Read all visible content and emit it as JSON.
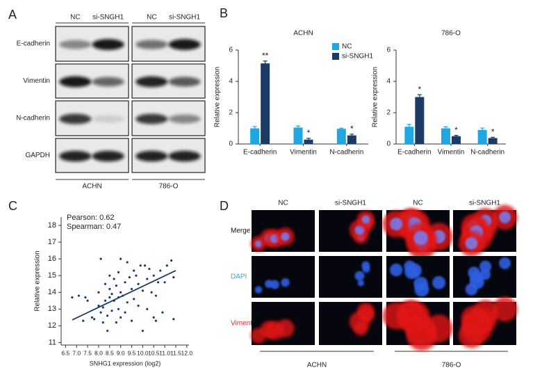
{
  "panel_labels": [
    "A",
    "B",
    "C",
    "D"
  ],
  "western_blot": {
    "groups": [
      {
        "label": "ACHN",
        "lanes": [
          "NC",
          "si-SNGH1"
        ]
      },
      {
        "label": "786-O",
        "lanes": [
          "NC",
          "si-SNGH1"
        ]
      }
    ],
    "rows": [
      "E-cadherin",
      "Vimentin",
      "N-cadherin",
      "GAPDH"
    ]
  },
  "chart_data": [
    {
      "type": "bar",
      "title": "ACHN",
      "y_label": "Relative expression",
      "categories": [
        "E-cadherin",
        "Vimentin",
        "N-cadherin"
      ],
      "series": [
        {
          "name": "NC",
          "color": "#1ea7e1",
          "values": [
            1,
            1.05,
            0.97
          ],
          "errors": [
            0.12,
            0.1,
            0.04
          ]
        },
        {
          "name": "si-SNGH1",
          "color": "#1b3a66",
          "values": [
            5.15,
            0.28,
            0.55
          ],
          "errors": [
            0.15,
            0.08,
            0.08
          ]
        }
      ],
      "annotations": [
        "**",
        "*",
        "*"
      ],
      "ylim": [
        0,
        6
      ],
      "yticks": [
        0,
        2,
        4,
        6
      ],
      "legend": "upper right"
    },
    {
      "type": "bar",
      "title": "786-O",
      "y_label": "Relative expression",
      "categories": [
        "E-cadherin",
        "Vimentin",
        "N-cadherin"
      ],
      "series": [
        {
          "name": "NC",
          "color": "#1ea7e1",
          "values": [
            1.1,
            1,
            0.9
          ],
          "errors": [
            0.15,
            0.1,
            0.12
          ]
        },
        {
          "name": "si-SNGH1",
          "color": "#1b3a66",
          "values": [
            3,
            0.5,
            0.38
          ],
          "errors": [
            0.15,
            0.05,
            0.05
          ]
        }
      ],
      "annotations": [
        "*",
        "*",
        "*"
      ],
      "ylim": [
        0,
        6
      ],
      "yticks": [
        0,
        2,
        4,
        6
      ]
    },
    {
      "type": "scatter",
      "x_label": "SNHG1 expression (log2)",
      "y_label": "Relative expression",
      "annotations": [
        "Pearson: 0.62",
        "Spearman: 0.47"
      ],
      "color": "#1b3a66",
      "x": [
        6.8,
        7.1,
        7.3,
        7.4,
        7.5,
        7.7,
        7.8,
        8.0,
        8.0,
        8.1,
        8.1,
        8.2,
        8.2,
        8.3,
        8.3,
        8.4,
        8.4,
        8.5,
        8.5,
        8.5,
        8.6,
        8.6,
        8.7,
        8.7,
        8.8,
        8.8,
        8.9,
        8.9,
        9.0,
        9.0,
        9.0,
        9.1,
        9.2,
        9.2,
        9.3,
        9.3,
        9.4,
        9.5,
        9.5,
        9.6,
        9.7,
        9.8,
        9.8,
        9.9,
        10.0,
        10.0,
        10.1,
        10.2,
        10.2,
        10.3,
        10.4,
        10.5,
        10.5,
        10.6,
        10.7,
        10.8,
        10.9,
        11.0,
        11.1,
        11.3,
        11.4,
        11.4,
        10.6,
        9.6,
        8.9
      ],
      "y": [
        13.7,
        13.8,
        12.3,
        13.7,
        13.5,
        12.5,
        12.4,
        14.0,
        13.2,
        12.8,
        16.0,
        13.1,
        12.2,
        14.5,
        13.5,
        12.6,
        11.7,
        14.2,
        13.7,
        15.0,
        12.9,
        13.9,
        14.8,
        13.5,
        14.4,
        12.2,
        13.0,
        15.2,
        16.0,
        14.0,
        12.5,
        13.8,
        14.6,
        12.8,
        15.8,
        13.4,
        14.9,
        14.2,
        12.3,
        13.6,
        15.0,
        14.5,
        13.2,
        15.6,
        14.1,
        11.7,
        15.6,
        14.8,
        13.0,
        15.4,
        14.0,
        12.5,
        15.0,
        13.8,
        14.6,
        15.3,
        12.8,
        14.6,
        15.6,
        15.9,
        12.4,
        14.9,
        12.3,
        15.3,
        13.7
      ],
      "trend": {
        "x": [
          6.8,
          11.5
        ],
        "y": [
          12.35,
          15.3
        ]
      },
      "xlim": [
        6.3,
        12.1
      ],
      "ylim": [
        10.85,
        18.5
      ],
      "xticks": [
        6.5,
        {
          "value": 7,
          "label": "7.0"
        },
        7.5,
        {
          "value": 8,
          "label": "8.0"
        },
        8.5,
        {
          "value": 9,
          "label": "9.0"
        },
        9.5,
        {
          "value": 10,
          "label": "10.0"
        },
        10.5,
        {
          "value": 11,
          "label": "11.0"
        },
        11.5,
        {
          "value": 12,
          "label": "12.0"
        }
      ],
      "yticks": [
        11,
        12,
        13,
        14,
        15,
        16,
        17,
        18
      ]
    }
  ],
  "immunofluorescence": {
    "groups": [
      {
        "label": "ACHN",
        "lanes": [
          "NC",
          "si-SNGH1"
        ]
      },
      {
        "label": "786-O",
        "lanes": [
          "NC",
          "si-SNGH1"
        ]
      }
    ],
    "rows": [
      {
        "label": "Merge",
        "color": "#111111"
      },
      {
        "label": "DAPI",
        "color": "#2aa7e0"
      },
      {
        "label": "Vimentin",
        "color": "#e0242a"
      }
    ]
  }
}
